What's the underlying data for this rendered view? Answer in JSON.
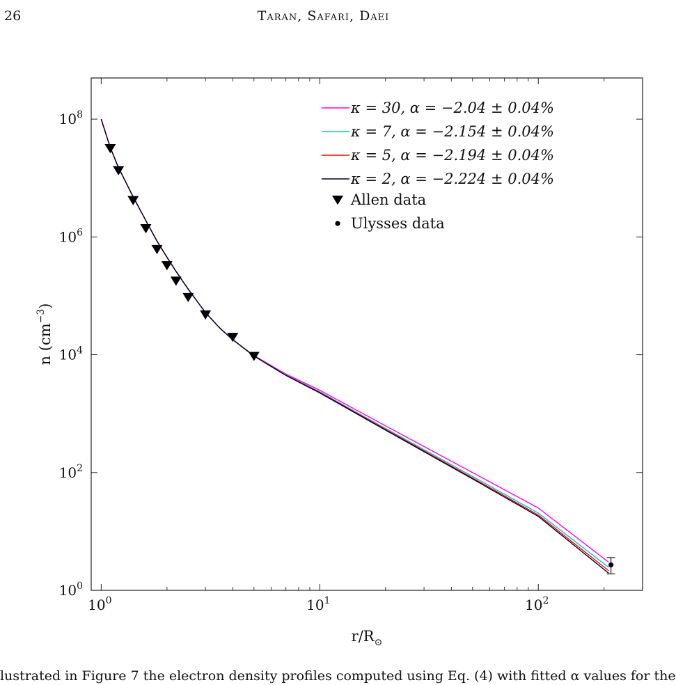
{
  "page": {
    "number": "26",
    "running_header": "Taran, Safari, Daei",
    "caption_fragment": "lustrated in Figure 7 the electron density profiles computed using Eq. (4) with fitted α values for the"
  },
  "chart_data": {
    "type": "line",
    "title": "",
    "xlabel": "r/R",
    "xlabel_subscript": "⊙",
    "ylabel": "n  (cm",
    "ylabel_superscript": "−3",
    "ylabel_close": ")",
    "xscale": "log",
    "yscale": "log",
    "xlim": [
      0.9,
      300
    ],
    "ylim": [
      1,
      500000000
    ],
    "x_ticks": [
      {
        "base": "10",
        "exp": "0",
        "value": 1
      },
      {
        "base": "10",
        "exp": "1",
        "value": 10
      },
      {
        "base": "10",
        "exp": "2",
        "value": 100
      }
    ],
    "y_ticks": [
      {
        "base": "10",
        "exp": "0",
        "value": 1
      },
      {
        "base": "10",
        "exp": "2",
        "value": 100
      },
      {
        "base": "10",
        "exp": "4",
        "value": 10000
      },
      {
        "base": "10",
        "exp": "6",
        "value": 1000000
      },
      {
        "base": "10",
        "exp": "8",
        "value": 100000000
      }
    ],
    "grid": false,
    "legend_position": "top-right",
    "series": [
      {
        "name": "κ = 30,  α = −2.04 ± 0.04%",
        "color": "#ff00ff",
        "points": [
          [
            1.0,
            100000000
          ],
          [
            1.1,
            33000000
          ],
          [
            1.2,
            15000000
          ],
          [
            1.4,
            4800000
          ],
          [
            1.6,
            1900000
          ],
          [
            1.8,
            850000
          ],
          [
            2.0,
            450000
          ],
          [
            2.2,
            260000
          ],
          [
            2.5,
            130000
          ],
          [
            3.0,
            52000
          ],
          [
            3.5,
            28000
          ],
          [
            4.0,
            18000
          ],
          [
            5.0,
            9700
          ],
          [
            7.0,
            4700
          ],
          [
            10.0,
            2500
          ],
          [
            20.0,
            620
          ],
          [
            50.0,
            100
          ],
          [
            100.0,
            25
          ],
          [
            210.0,
            3.0
          ]
        ]
      },
      {
        "name": "κ = 7,  α = −2.154 ± 0.04%",
        "color": "#00c8c8",
        "points": [
          [
            1.0,
            100000000
          ],
          [
            1.1,
            33000000
          ],
          [
            1.2,
            15000000
          ],
          [
            1.4,
            4800000
          ],
          [
            1.6,
            1900000
          ],
          [
            1.8,
            850000
          ],
          [
            2.0,
            450000
          ],
          [
            2.2,
            260000
          ],
          [
            2.5,
            130000
          ],
          [
            3.0,
            52000
          ],
          [
            3.5,
            28000
          ],
          [
            4.0,
            18000
          ],
          [
            5.0,
            9600
          ],
          [
            7.0,
            4550
          ],
          [
            10.0,
            2350
          ],
          [
            20.0,
            560
          ],
          [
            50.0,
            86
          ],
          [
            100.0,
            20.5
          ],
          [
            210.0,
            2.45
          ]
        ]
      },
      {
        "name": "κ = 5,  α = −2.194 ± 0.04%",
        "color": "#ff0000",
        "points": [
          [
            1.0,
            100000000
          ],
          [
            1.1,
            33000000
          ],
          [
            1.2,
            15000000
          ],
          [
            1.4,
            4800000
          ],
          [
            1.6,
            1900000
          ],
          [
            1.8,
            850000
          ],
          [
            2.0,
            450000
          ],
          [
            2.2,
            260000
          ],
          [
            2.5,
            130000
          ],
          [
            3.0,
            52000
          ],
          [
            3.5,
            28000
          ],
          [
            4.0,
            18000
          ],
          [
            5.0,
            9550
          ],
          [
            7.0,
            4500
          ],
          [
            10.0,
            2300
          ],
          [
            20.0,
            540
          ],
          [
            50.0,
            81
          ],
          [
            100.0,
            19
          ],
          [
            210.0,
            2.15
          ]
        ]
      },
      {
        "name": "κ = 2,  α = −2.224 ± 0.04%",
        "color": "#000033",
        "points": [
          [
            1.0,
            100000000
          ],
          [
            1.1,
            33000000
          ],
          [
            1.2,
            15000000
          ],
          [
            1.4,
            4800000
          ],
          [
            1.6,
            1900000
          ],
          [
            1.8,
            850000
          ],
          [
            2.0,
            450000
          ],
          [
            2.2,
            260000
          ],
          [
            2.5,
            130000
          ],
          [
            3.0,
            52000
          ],
          [
            3.5,
            28000
          ],
          [
            4.0,
            18000
          ],
          [
            5.0,
            9500
          ],
          [
            7.0,
            4450
          ],
          [
            10.0,
            2250
          ],
          [
            20.0,
            525
          ],
          [
            50.0,
            78
          ],
          [
            100.0,
            18
          ],
          [
            210.0,
            1.95
          ]
        ]
      }
    ],
    "markers": [
      {
        "name": "Allen data",
        "symbol": "triangle-down",
        "color": "#000000",
        "points": [
          [
            1.1,
            32000000
          ],
          [
            1.2,
            13500000
          ],
          [
            1.4,
            4200000
          ],
          [
            1.6,
            1400000
          ],
          [
            1.8,
            620000
          ],
          [
            2.0,
            330000
          ],
          [
            2.2,
            180000
          ],
          [
            2.5,
            95000
          ],
          [
            3.0,
            48000
          ],
          [
            4.0,
            20000
          ],
          [
            5.0,
            9500
          ]
        ]
      },
      {
        "name": "Ulysses data",
        "symbol": "dot",
        "color": "#000000",
        "points": [
          [
            215,
            2.7
          ]
        ],
        "error_low": [
          1.9
        ],
        "error_high": [
          3.6
        ]
      }
    ]
  }
}
